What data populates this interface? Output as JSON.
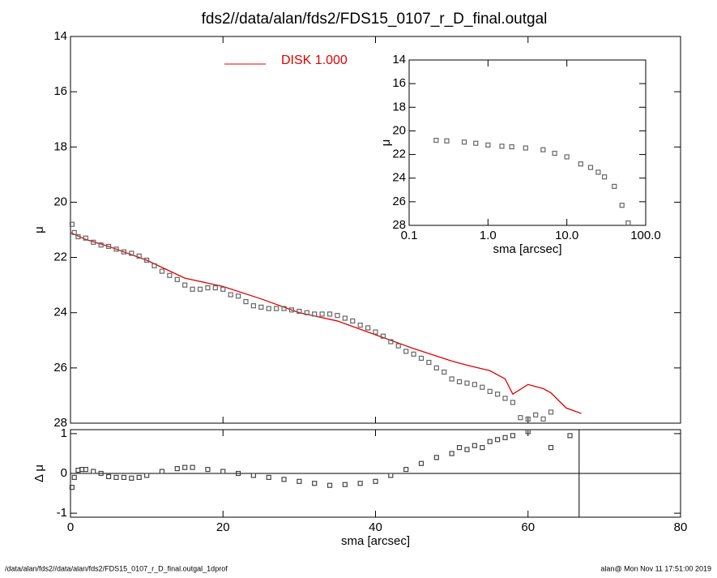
{
  "footer_left": "/data/alan/fds2//data/alan/fds2/FDS15_0107_r_D_final.outgal_1dprof",
  "footer_right": "alan@  Mon Nov 11 17:51:00 2019",
  "chart_data": [
    {
      "type": "scatter",
      "title": "fds2//data/alan/fds2/FDS15_0107_r_D_final.outgal",
      "y_label": "μ",
      "xlim": [
        0,
        80
      ],
      "xticks": [
        0,
        20,
        40,
        60,
        80
      ],
      "ylim": [
        28,
        14
      ],
      "yticks": [
        14,
        16,
        18,
        20,
        22,
        24,
        26,
        28
      ],
      "legend": "top",
      "points": {
        "color": "#666666",
        "x": [
          0.2,
          0.5,
          1,
          2,
          3,
          4,
          5,
          6,
          7,
          8,
          9,
          10,
          11,
          12,
          13,
          14,
          15,
          16,
          17,
          18,
          19,
          20,
          21,
          22,
          23,
          24,
          25,
          26,
          27,
          28,
          29,
          30,
          31,
          32,
          33,
          34,
          35,
          36,
          37,
          38,
          39,
          40,
          41,
          42,
          43,
          44,
          45,
          46,
          47,
          48,
          49,
          50,
          51,
          52,
          53,
          54,
          55,
          56,
          57,
          58,
          59,
          60,
          61,
          62,
          63
        ],
        "values": [
          20.8,
          21.1,
          21.25,
          21.3,
          21.45,
          21.55,
          21.6,
          21.7,
          21.8,
          21.85,
          21.95,
          22.1,
          22.3,
          22.5,
          22.65,
          22.8,
          23.0,
          23.15,
          23.15,
          23.1,
          23.1,
          23.15,
          23.35,
          23.4,
          23.6,
          23.75,
          23.8,
          23.85,
          23.85,
          23.85,
          23.9,
          23.95,
          24.0,
          24.05,
          24.05,
          24.05,
          24.1,
          24.2,
          24.3,
          24.45,
          24.55,
          24.7,
          24.85,
          25.05,
          25.2,
          25.4,
          25.5,
          25.65,
          25.8,
          26.0,
          26.15,
          26.4,
          26.5,
          26.55,
          26.6,
          26.7,
          26.85,
          26.95,
          27.1,
          27.25,
          27.8,
          27.85,
          27.7,
          27.85,
          27.6
        ]
      },
      "series": [
        {
          "name": "DISK  1.000",
          "color": "#e00000",
          "x": [
            0,
            2,
            5,
            10,
            15,
            20,
            25,
            30,
            35,
            40,
            45,
            50,
            52,
            55,
            57,
            58,
            60,
            62,
            63,
            65,
            67
          ],
          "values": [
            21.1,
            21.35,
            21.6,
            22.1,
            22.75,
            23.05,
            23.5,
            24.0,
            24.3,
            24.8,
            25.3,
            25.75,
            25.9,
            26.1,
            26.4,
            26.95,
            26.6,
            26.75,
            26.9,
            27.45,
            27.65
          ]
        }
      ]
    },
    {
      "type": "scatter",
      "x_label": "sma [arcsec]",
      "y_label": "Δ μ",
      "xlim": [
        0,
        80
      ],
      "xticks": [
        0,
        20,
        40,
        60,
        80
      ],
      "ylim": [
        -1.1,
        1.1
      ],
      "yticks": [
        -1,
        0,
        1
      ],
      "hline": 0,
      "vline": 66.7,
      "points": {
        "color": "#444444",
        "x": [
          0.2,
          0.5,
          1,
          1.5,
          2,
          3,
          4,
          5,
          6,
          7,
          8,
          9,
          10,
          12,
          14,
          15,
          16,
          18,
          20,
          22,
          24,
          26,
          28,
          30,
          32,
          34,
          36,
          38,
          40,
          42,
          44,
          46,
          48,
          50,
          51,
          52,
          53,
          54,
          55,
          56,
          57,
          58,
          60,
          63,
          65.5
        ],
        "values": [
          -0.35,
          -0.1,
          0.08,
          0.1,
          0.1,
          0.05,
          0.0,
          -0.08,
          -0.1,
          -0.1,
          -0.12,
          -0.1,
          -0.05,
          0.05,
          0.12,
          0.15,
          0.15,
          0.1,
          0.05,
          0.0,
          -0.05,
          -0.1,
          -0.15,
          -0.2,
          -0.25,
          -0.3,
          -0.28,
          -0.25,
          -0.2,
          -0.05,
          0.1,
          0.25,
          0.4,
          0.5,
          0.65,
          0.6,
          0.7,
          0.65,
          0.8,
          0.85,
          0.9,
          0.95,
          1.05,
          0.65,
          0.95
        ]
      }
    },
    {
      "type": "scatter",
      "x_label": "sma [arcsec]",
      "y_label": "μ",
      "log_x": true,
      "xlim": [
        0.1,
        100
      ],
      "xticks": [
        {
          "value": 0.1,
          "label": "0.1"
        },
        {
          "value": 1,
          "label": "1.0"
        },
        {
          "value": 10,
          "label": "10.0"
        },
        {
          "value": 100,
          "label": "100.0"
        }
      ],
      "ylim": [
        28,
        14
      ],
      "yticks": [
        14,
        16,
        18,
        20,
        22,
        24,
        26,
        28
      ],
      "points": {
        "color": "#666666",
        "x": [
          0.22,
          0.3,
          0.5,
          0.7,
          1,
          1.5,
          2,
          3,
          5,
          7,
          10,
          15,
          20,
          25,
          30,
          40,
          50,
          60
        ],
        "values": [
          20.8,
          20.85,
          20.95,
          21.05,
          21.2,
          21.3,
          21.35,
          21.45,
          21.6,
          21.9,
          22.2,
          22.8,
          23.1,
          23.5,
          23.9,
          24.7,
          26.3,
          27.8
        ]
      }
    }
  ]
}
